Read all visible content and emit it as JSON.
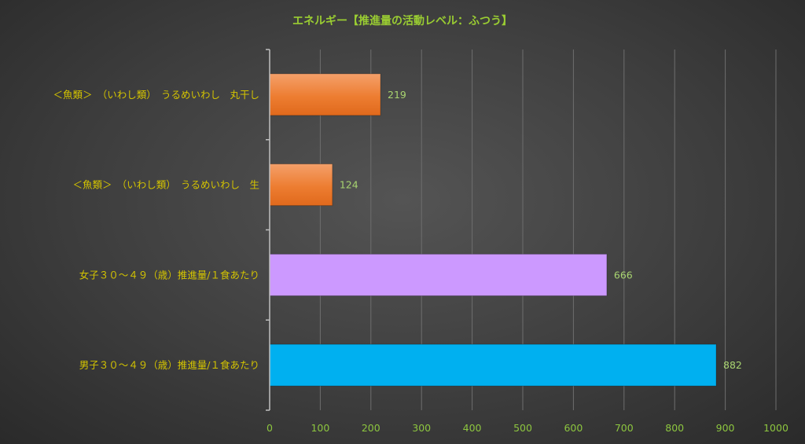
{
  "chart_data": {
    "type": "bar",
    "orientation": "horizontal",
    "title": "エネルギー【推進量の活動レベル：ふつう】",
    "categories": [
      "＜魚類＞　（いわし類）　うるめいわし　丸干し",
      "＜魚類＞　（いわし類）　うるめいわし　生",
      "女子３０～４９（歳）推進量/１食あたり",
      "男子３０～４９（歳）推進量/１食あたり"
    ],
    "values": [
      219,
      124,
      666,
      882
    ],
    "bar_colors": [
      "#ED7D31",
      "#ED7D31",
      "#CC99FF",
      "#00B0F0"
    ],
    "xlim": [
      0,
      1000
    ],
    "ticks": [
      0,
      100,
      200,
      300,
      400,
      500,
      600,
      700,
      800,
      900,
      1000
    ],
    "xlabel": "",
    "ylabel": "",
    "grid": true,
    "legend": "none",
    "colors": {
      "title": "#9ACD32",
      "category_text": "#D4C400",
      "tick_text": "#8DC63F",
      "data_label": "#A8D470",
      "gridline": "#6E6E6E",
      "axis": "#BFBFBF"
    }
  }
}
